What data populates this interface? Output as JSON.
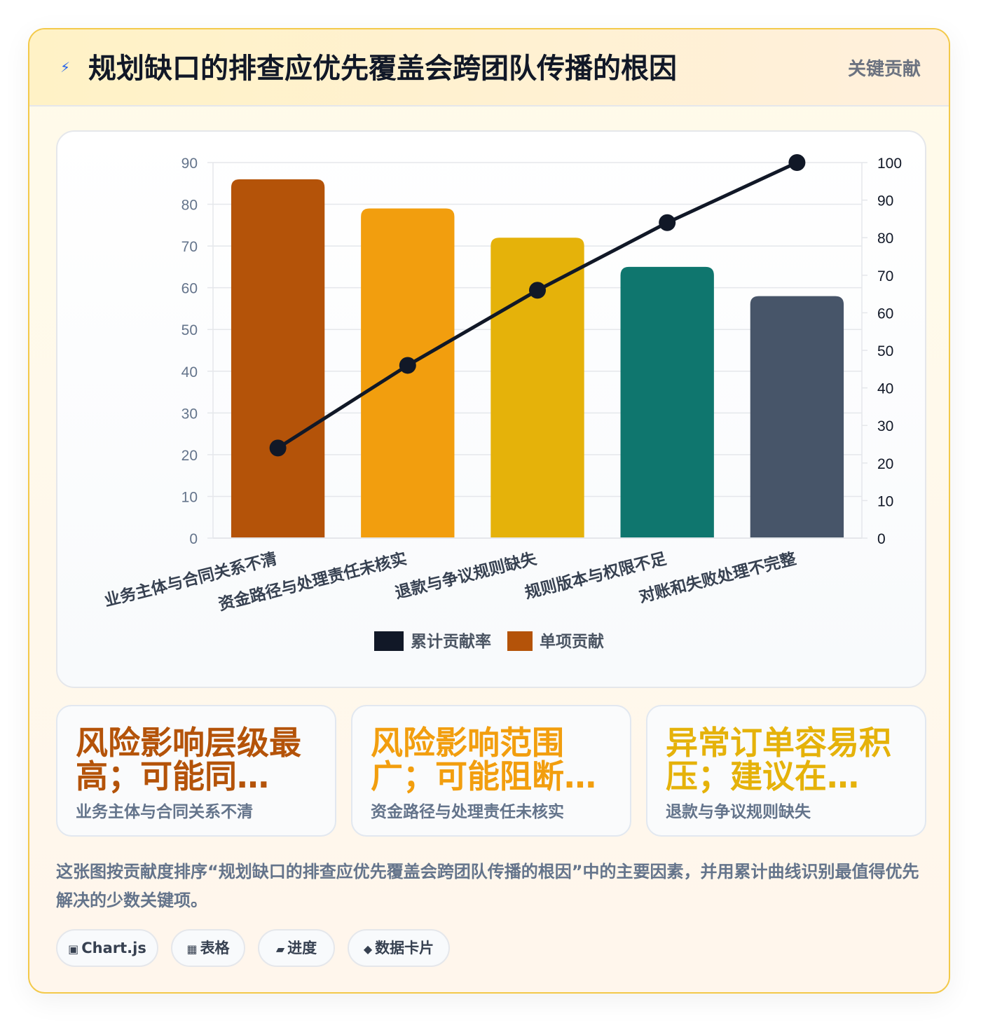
{
  "header": {
    "icon": "lightning-icon",
    "title": "规划缺口的排查应优先覆盖会跨团队传播的根因",
    "badge": "关键贡献"
  },
  "chart_data": {
    "type": "bar",
    "categories": [
      "业务主体与合同关系不清",
      "资金路径与处理责任未核实",
      "退款与争议规则缺失",
      "规则版本与权限不足",
      "对账和失败处理不完整"
    ],
    "series": [
      {
        "name": "单项贡献",
        "type": "bar",
        "axis": "left",
        "values": [
          86,
          79,
          72,
          65,
          58
        ],
        "colors": [
          "#b45309",
          "#f29e0e",
          "#e5b20a",
          "#0f766e",
          "#475569"
        ]
      },
      {
        "name": "累计贡献率",
        "type": "line",
        "axis": "right",
        "values": [
          24,
          46,
          66,
          84,
          100
        ],
        "color": "#111827"
      }
    ],
    "ylim_left": [
      0,
      90
    ],
    "ylim_right": [
      0,
      100
    ],
    "yticks_left": [
      0,
      10,
      20,
      30,
      40,
      50,
      60,
      70,
      80,
      90
    ],
    "yticks_right": [
      0,
      10,
      20,
      30,
      40,
      50,
      60,
      70,
      80,
      90,
      100
    ],
    "grid": true,
    "legend_position": "bottom",
    "legend": [
      {
        "label": "累计贡献率",
        "color": "#111827"
      },
      {
        "label": "单项贡献",
        "color": "#b45309"
      }
    ]
  },
  "kpis": [
    {
      "value": "风险影响层级最高；可能同…",
      "label": "业务主体与合同关系不清",
      "color": "#b45309"
    },
    {
      "value": "风险影响范围广；可能阻断…",
      "label": "资金路径与处理责任未核实",
      "color": "#f29e0e"
    },
    {
      "value": "异常订单容易积压；建议在…",
      "label": "退款与争议规则缺失",
      "color": "#e5b20a"
    }
  ],
  "description": "这张图按贡献度排序“规划缺口的排查应优先覆盖会跨团队传播的根因”中的主要因素，并用累计曲线识别最值得优先解决的少数关键项。",
  "tags": [
    {
      "icon": "▣",
      "label": "Chart.js"
    },
    {
      "icon": "▦",
      "label": "表格"
    },
    {
      "icon": "▰",
      "label": "进度"
    },
    {
      "icon": "◆",
      "label": "数据卡片"
    }
  ]
}
